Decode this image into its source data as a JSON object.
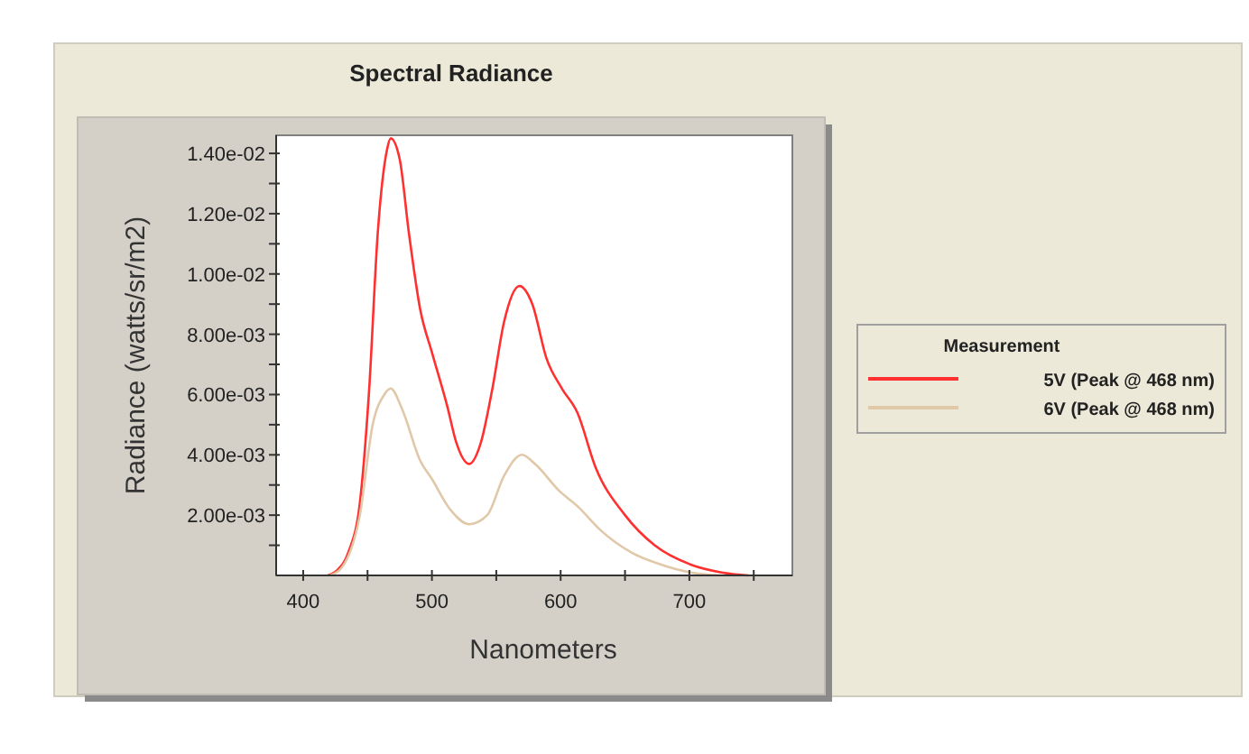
{
  "chart_data": {
    "type": "line",
    "title": "Spectral Radiance",
    "xlabel": "Nanometers",
    "ylabel": "Radiance (watts/sr/m2)",
    "legend_title": "Measurement",
    "legend": "right",
    "grid": false,
    "marker": "none",
    "line_style": "solid",
    "xlim": [
      379,
      780
    ],
    "ylim": [
      0,
      0.0146
    ],
    "xticks": [
      400,
      {
        "value": 450,
        "label": null
      },
      500,
      {
        "value": 550,
        "label": null
      },
      600,
      {
        "value": 650,
        "label": null
      },
      700,
      {
        "value": 750,
        "label": null
      }
    ],
    "yticks": [
      {
        "value": 0.001,
        "label": null
      },
      {
        "value": 0.002,
        "label": "2.00e-03"
      },
      {
        "value": 0.003,
        "label": null
      },
      {
        "value": 0.004,
        "label": "4.00e-03"
      },
      {
        "value": 0.005,
        "label": null
      },
      {
        "value": 0.006,
        "label": "6.00e-03"
      },
      {
        "value": 0.007,
        "label": null
      },
      {
        "value": 0.008,
        "label": "8.00e-03"
      },
      {
        "value": 0.009,
        "label": null
      },
      {
        "value": 0.01,
        "label": "1.00e-02"
      },
      {
        "value": 0.011,
        "label": null
      },
      {
        "value": 0.012,
        "label": "1.20e-02"
      },
      {
        "value": 0.013,
        "label": null
      },
      {
        "value": 0.014,
        "label": "1.40e-02"
      }
    ],
    "series": [
      {
        "name": "5V (Peak @ 468 nm)",
        "color": "#ff3030",
        "x": [
          419,
          426,
          435,
          444,
          451,
          458,
          465,
          468,
          475,
          482,
          491,
          500,
          512,
          519,
          529,
          538,
          547,
          556,
          568,
          578,
          589,
          601,
          613,
          627,
          650,
          673,
          701,
          725,
          746
        ],
        "values": [
          0,
          0.00016,
          0.00076,
          0.0024,
          0.006,
          0.0114,
          0.0141,
          0.0145,
          0.0138,
          0.0114,
          0.0088,
          0.0074,
          0.0056,
          0.0044,
          0.0037,
          0.0044,
          0.0062,
          0.0084,
          0.0096,
          0.009,
          0.0072,
          0.0062,
          0.0054,
          0.0036,
          0.002,
          0.001,
          0.00036,
          0.0001,
          0
        ]
      },
      {
        "name": "6V (Peak @ 468 nm)",
        "color": "#e0c8a8",
        "x": [
          421,
          430,
          444,
          454,
          463,
          468,
          477,
          491,
          500,
          514,
          529,
          543,
          556,
          570,
          580,
          599,
          613,
          631,
          655,
          678,
          701,
          725
        ],
        "values": [
          0,
          0.00026,
          0.002,
          0.005,
          0.006,
          0.0062,
          0.0055,
          0.0038,
          0.0032,
          0.0022,
          0.0017,
          0.002,
          0.0033,
          0.004,
          0.0037,
          0.0028,
          0.0023,
          0.0015,
          0.00076,
          0.00036,
          0.0001,
          0
        ]
      }
    ]
  }
}
